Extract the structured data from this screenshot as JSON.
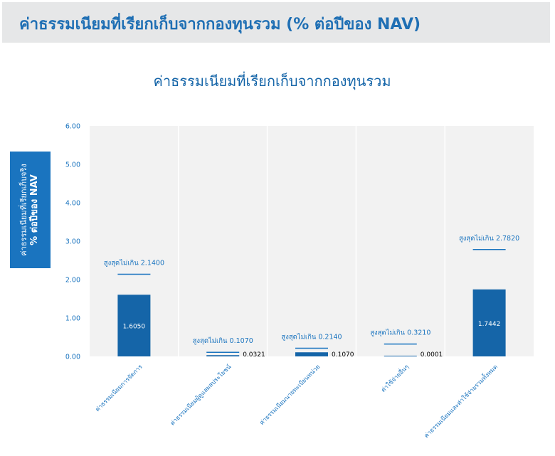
{
  "banner": {
    "title": "ค่าธรรมเนียมที่เรียกเก็บจากกองทุนรวม (% ต่อปีของ NAV)"
  },
  "colors": {
    "bar": "#1565a8",
    "accent": "#1a74bf",
    "plot_bg": "#f2f2f2",
    "grid": "#ffffff"
  },
  "chart_data": {
    "type": "bar",
    "title": "ค่าธรรมเนียมที่เรียกเก็บจากกองทุนรวม",
    "ylabel_line1": "ค่าธรรมเนียมที่เรียกเก็บจริง",
    "ylabel_line2": "% ต่อปีของ NAV",
    "ylim": [
      0,
      6
    ],
    "yticks": [
      "0.00",
      "1.00",
      "2.00",
      "3.00",
      "4.00",
      "5.00",
      "6.00"
    ],
    "grid": "vertical",
    "categories": [
      "ค่าธรรมเนียมการจัดการ",
      "ค่าธรรมเนียมผู้ดูแลผลประโยชน์",
      "ค่าธรรมเนียมนายทะเบียนหน่วย",
      "ค่าใช้จ่ายอื่นๆ",
      "ค่าธรรมเนียมและค่าใช้จ่ายรวมทั้งหมด"
    ],
    "values": [
      1.605,
      0.0321,
      0.107,
      0.0001,
      1.7442
    ],
    "value_labels": [
      "1.6050",
      "0.0321",
      "0.1070",
      "0.0001",
      "1.7442"
    ],
    "max_values": [
      2.14,
      0.107,
      0.214,
      0.321,
      2.782
    ],
    "max_labels": [
      "สูงสุดไม่เกิน 2.1400",
      "สูงสุดไม่เกิน 0.1070",
      "สูงสุดไม่เกิน 0.2140",
      "สูงสุดไม่เกิน 0.3210",
      "สูงสุดไม่เกิน 2.7820"
    ]
  }
}
